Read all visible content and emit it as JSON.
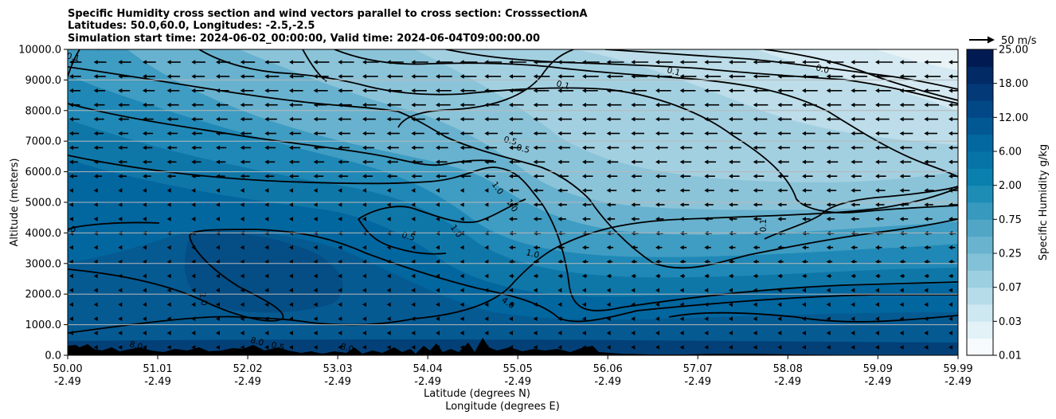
{
  "chart_data": {
    "type": "contour",
    "title_lines": [
      "Specific Humidity cross section and wind vectors parallel to cross section: CrosssectionA",
      "Latitudes: 50.0,60.0, Longitudes: -2.5,-2.5",
      "Simulation start time: 2024-06-02_00:00:00, Valid time: 2024-06-04T09:00:00.00"
    ],
    "xlabel_lines": [
      "Latitude (degrees N)",
      "Longitude (degrees E)"
    ],
    "ylabel": "Altitude (meters)",
    "x_ticks": [
      {
        "lat": "50.00",
        "lon": "-2.49"
      },
      {
        "lat": "51.01",
        "lon": "-2.49"
      },
      {
        "lat": "52.02",
        "lon": "-2.49"
      },
      {
        "lat": "53.03",
        "lon": "-2.49"
      },
      {
        "lat": "54.04",
        "lon": "-2.49"
      },
      {
        "lat": "55.05",
        "lon": "-2.49"
      },
      {
        "lat": "56.06",
        "lon": "-2.49"
      },
      {
        "lat": "57.07",
        "lon": "-2.49"
      },
      {
        "lat": "58.08",
        "lon": "-2.49"
      },
      {
        "lat": "59.09",
        "lon": "-2.49"
      },
      {
        "lat": "59.99",
        "lon": "-2.49"
      }
    ],
    "xlim": [
      50.0,
      59.99
    ],
    "y_ticks": [
      "0.0",
      "1000.0",
      "2000.0",
      "3000.0",
      "4000.0",
      "5000.0",
      "6000.0",
      "7000.0",
      "8000.0",
      "9000.0",
      "10000.0"
    ],
    "ylim": [
      0,
      10000
    ],
    "grid": "horizontal",
    "colorbar": {
      "label": "Specific Humidity g/kg",
      "tick_labels": [
        "0.01",
        "0.03",
        "0.07",
        "0.25",
        "0.75",
        "2.00",
        "6.00",
        "12.00",
        "18.00",
        "25.00"
      ],
      "levels": 18,
      "colormap": [
        "#f7fbfd",
        "#c5e4ee",
        "#86c3d8",
        "#4aa2c4",
        "#0b84b0",
        "#02669f",
        "#033f7e",
        "#011b52"
      ]
    },
    "quiver_key": "50 m/s",
    "contour_labels": [
      "0.1",
      "0.1",
      "0.1",
      "0.1",
      "0.0",
      "0.5",
      "0.5",
      "0.5",
      "1.0",
      "1.0",
      "1.0",
      "1.0",
      "2.0",
      "4.0",
      "8.0",
      "8.0",
      "8.0",
      "0.1",
      "0.5",
      "0.1",
      "2.0"
    ]
  }
}
